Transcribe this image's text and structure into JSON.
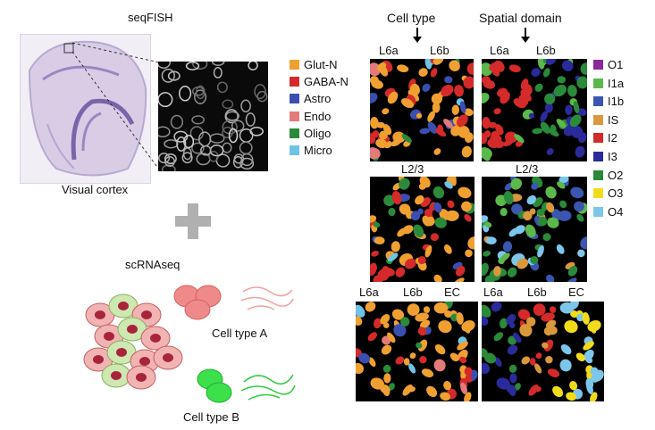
{
  "seqfish": {
    "label": "seqFISH",
    "caption": "Visual cortex"
  },
  "scrnaseq": {
    "label": "scRNAseq",
    "cell_a": "Cell type A",
    "cell_b": "Cell type B"
  },
  "headers": {
    "cell_type": "Cell type",
    "spatial_domain": "Spatial domain"
  },
  "panel_labels": {
    "row1_left": [
      "L6a",
      "L6b"
    ],
    "row1_right": [
      "L6a",
      "L6b"
    ],
    "row2_left": "L2/3",
    "row2_right": "L2/3",
    "row3_left": [
      "L6a",
      "L6b",
      "EC"
    ],
    "row3_right": [
      "L6a",
      "L6b",
      "EC"
    ]
  },
  "cell_type_legend": [
    {
      "label": "Glut-N",
      "color": "#f0a030"
    },
    {
      "label": "GABA-N",
      "color": "#d42a2a"
    },
    {
      "label": "Astro",
      "color": "#3a4fb0"
    },
    {
      "label": "Endo",
      "color": "#e57a7a"
    },
    {
      "label": "Oligo",
      "color": "#2a8a3a"
    },
    {
      "label": "Micro",
      "color": "#6ec3e6"
    }
  ],
  "domain_legend": [
    {
      "label": "O1",
      "color": "#8a2a9a"
    },
    {
      "label": "I1a",
      "color": "#5bb84a"
    },
    {
      "label": "I1b",
      "color": "#3a56b0"
    },
    {
      "label": "IS",
      "color": "#d9983a"
    },
    {
      "label": "I2",
      "color": "#d42a2a"
    },
    {
      "label": "I3",
      "color": "#2a2a9a"
    },
    {
      "label": "O2",
      "color": "#2a8a3a"
    },
    {
      "label": "O3",
      "color": "#f2dc1a"
    },
    {
      "label": "O4",
      "color": "#7cc6ec"
    }
  ],
  "plus_color": "#b0b0b0"
}
